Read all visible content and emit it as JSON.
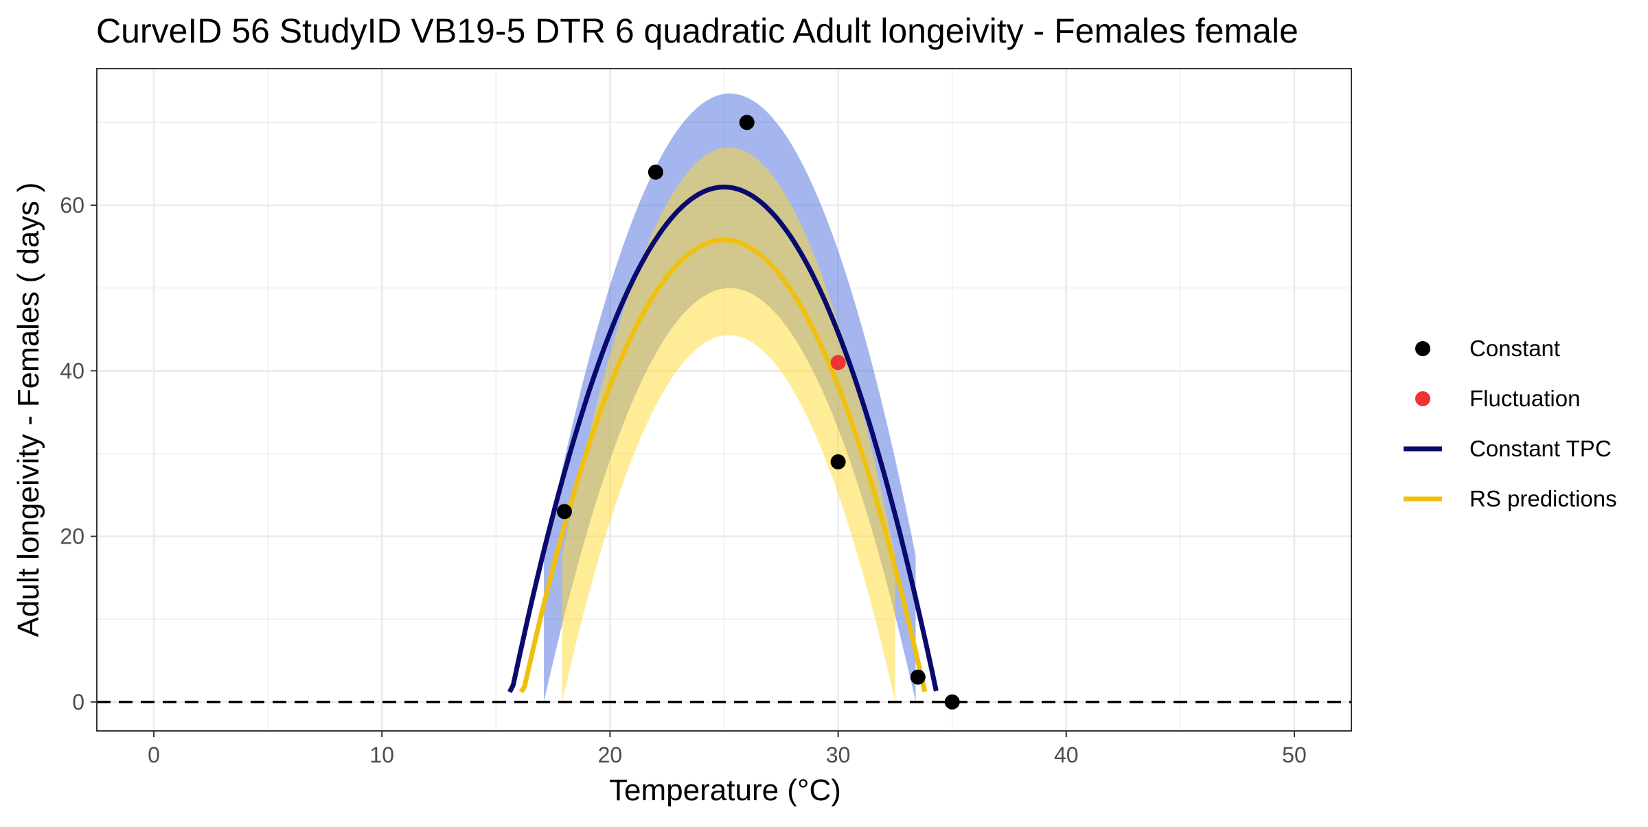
{
  "chart_data": {
    "type": "line",
    "title": "CurveID 56 StudyID VB19-5 DTR 6 quadratic Adult longeivity - Females female",
    "xlabel": "Temperature (°C)",
    "ylabel": "Adult longeivity - Females ( days )",
    "xlim": [
      -2.5,
      52.5
    ],
    "ylim": [
      -3.5,
      76.5
    ],
    "x_ticks": [
      0,
      10,
      20,
      30,
      40,
      50
    ],
    "y_ticks": [
      0,
      20,
      40,
      60
    ],
    "grid": true,
    "legend_position": "right",
    "reference_line": {
      "y": 0,
      "style": "dashed",
      "color": "#000000"
    },
    "series": [
      {
        "name": "Constant",
        "kind": "points",
        "color": "#000000",
        "points": [
          [
            18,
            23
          ],
          [
            22,
            64
          ],
          [
            26,
            70
          ],
          [
            30,
            29
          ],
          [
            33.5,
            3
          ],
          [
            35,
            0
          ]
        ]
      },
      {
        "name": "Fluctuation",
        "kind": "points",
        "color": "#ee3333",
        "points": [
          [
            30,
            41
          ]
        ]
      },
      {
        "name": "Constant TPC",
        "kind": "curve",
        "color": "#0a0a6e",
        "curve": {
          "peak_x": 25.0,
          "peak_y": 62.2,
          "x_min": 15.6,
          "x_max": 34.3
        },
        "band": {
          "color": "#4a6ddb",
          "x_min": 17.1,
          "x_max": 33.4,
          "upper_peak": 73.5,
          "lower_peak": 50.0
        }
      },
      {
        "name": "RS predictions",
        "kind": "curve",
        "color": "#f0c010",
        "curve": {
          "peak_x": 25.0,
          "peak_y": 55.8,
          "x_min": 16.1,
          "x_max": 33.8
        },
        "band": {
          "color": "#ffd92e",
          "x_min": 17.9,
          "x_max": 32.5,
          "upper_peak": 67.0,
          "lower_peak": 44.3
        }
      }
    ]
  }
}
